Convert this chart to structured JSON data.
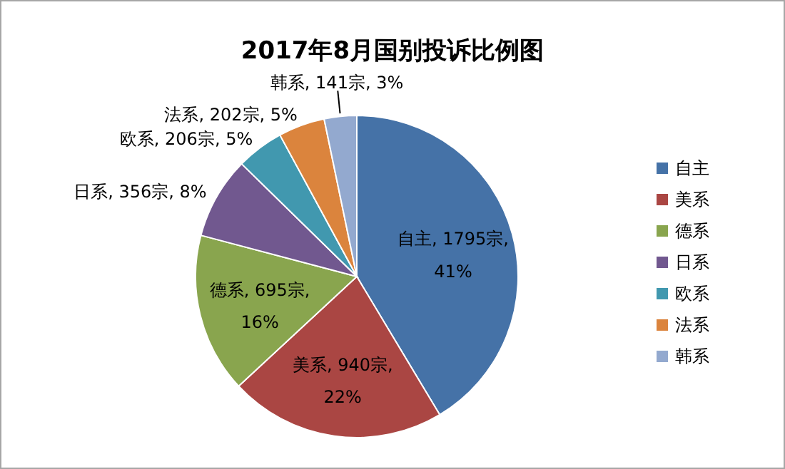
{
  "chart_data": {
    "type": "pie",
    "title": "2017年8月国别投诉比例图",
    "categories": [
      "自主",
      "美系",
      "德系",
      "日系",
      "欧系",
      "法系",
      "韩系"
    ],
    "values": [
      1795,
      940,
      695,
      356,
      206,
      202,
      141
    ],
    "value_labels": [
      "自主, 1795宗, 41%",
      "美系, 940宗, 22%",
      "德系, 695宗, 16%",
      "日系, 356宗, 8%",
      "欧系, 206宗, 5%",
      "法系, 202宗, 5%",
      "韩系, 141宗, 3%"
    ],
    "colors": [
      "#4572a7",
      "#aa4643",
      "#89a54e",
      "#71588f",
      "#4198af",
      "#db843d",
      "#93a9cf"
    ],
    "legend": "right"
  }
}
